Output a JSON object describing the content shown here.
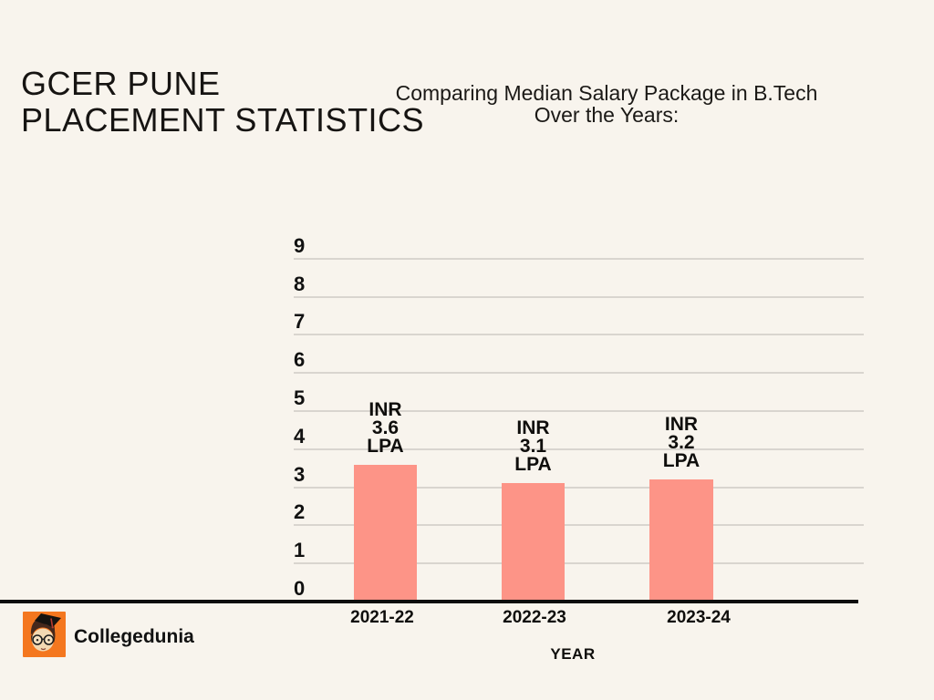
{
  "page": {
    "background": "#F8F4ED",
    "title": "GCER PUNE\nPLACEMENT STATISTICS",
    "subtitle": "Comparing Median Salary Package in B.Tech\nOver the Years:"
  },
  "chart_data": {
    "type": "bar",
    "title": "Comparing Median Salary Package in B.Tech Over the Years:",
    "categories": [
      "2021-22",
      "2022-23",
      "2023-24"
    ],
    "values": [
      3.6,
      3.1,
      3.2
    ],
    "bar_labels": [
      "INR\n3.6\nLPA",
      "INR\n3.1\nLPA",
      "INR\n3.2\nLPA"
    ],
    "xlabel": "YEAR",
    "ylabel": "",
    "ylim": [
      0,
      9
    ],
    "ytick_interval": 1,
    "yticks": [
      0,
      1,
      2,
      3,
      4,
      5,
      6,
      7,
      8,
      9
    ],
    "grid": true,
    "legend": false,
    "bar_color": "#FD9487",
    "gridline_color": "#D9D5CF",
    "axis_color": "#0d0d0d"
  },
  "footer": {
    "brand": "Collegedunia",
    "logo_color": "#F4771F",
    "logo_icon": "graduate-face-icon"
  }
}
